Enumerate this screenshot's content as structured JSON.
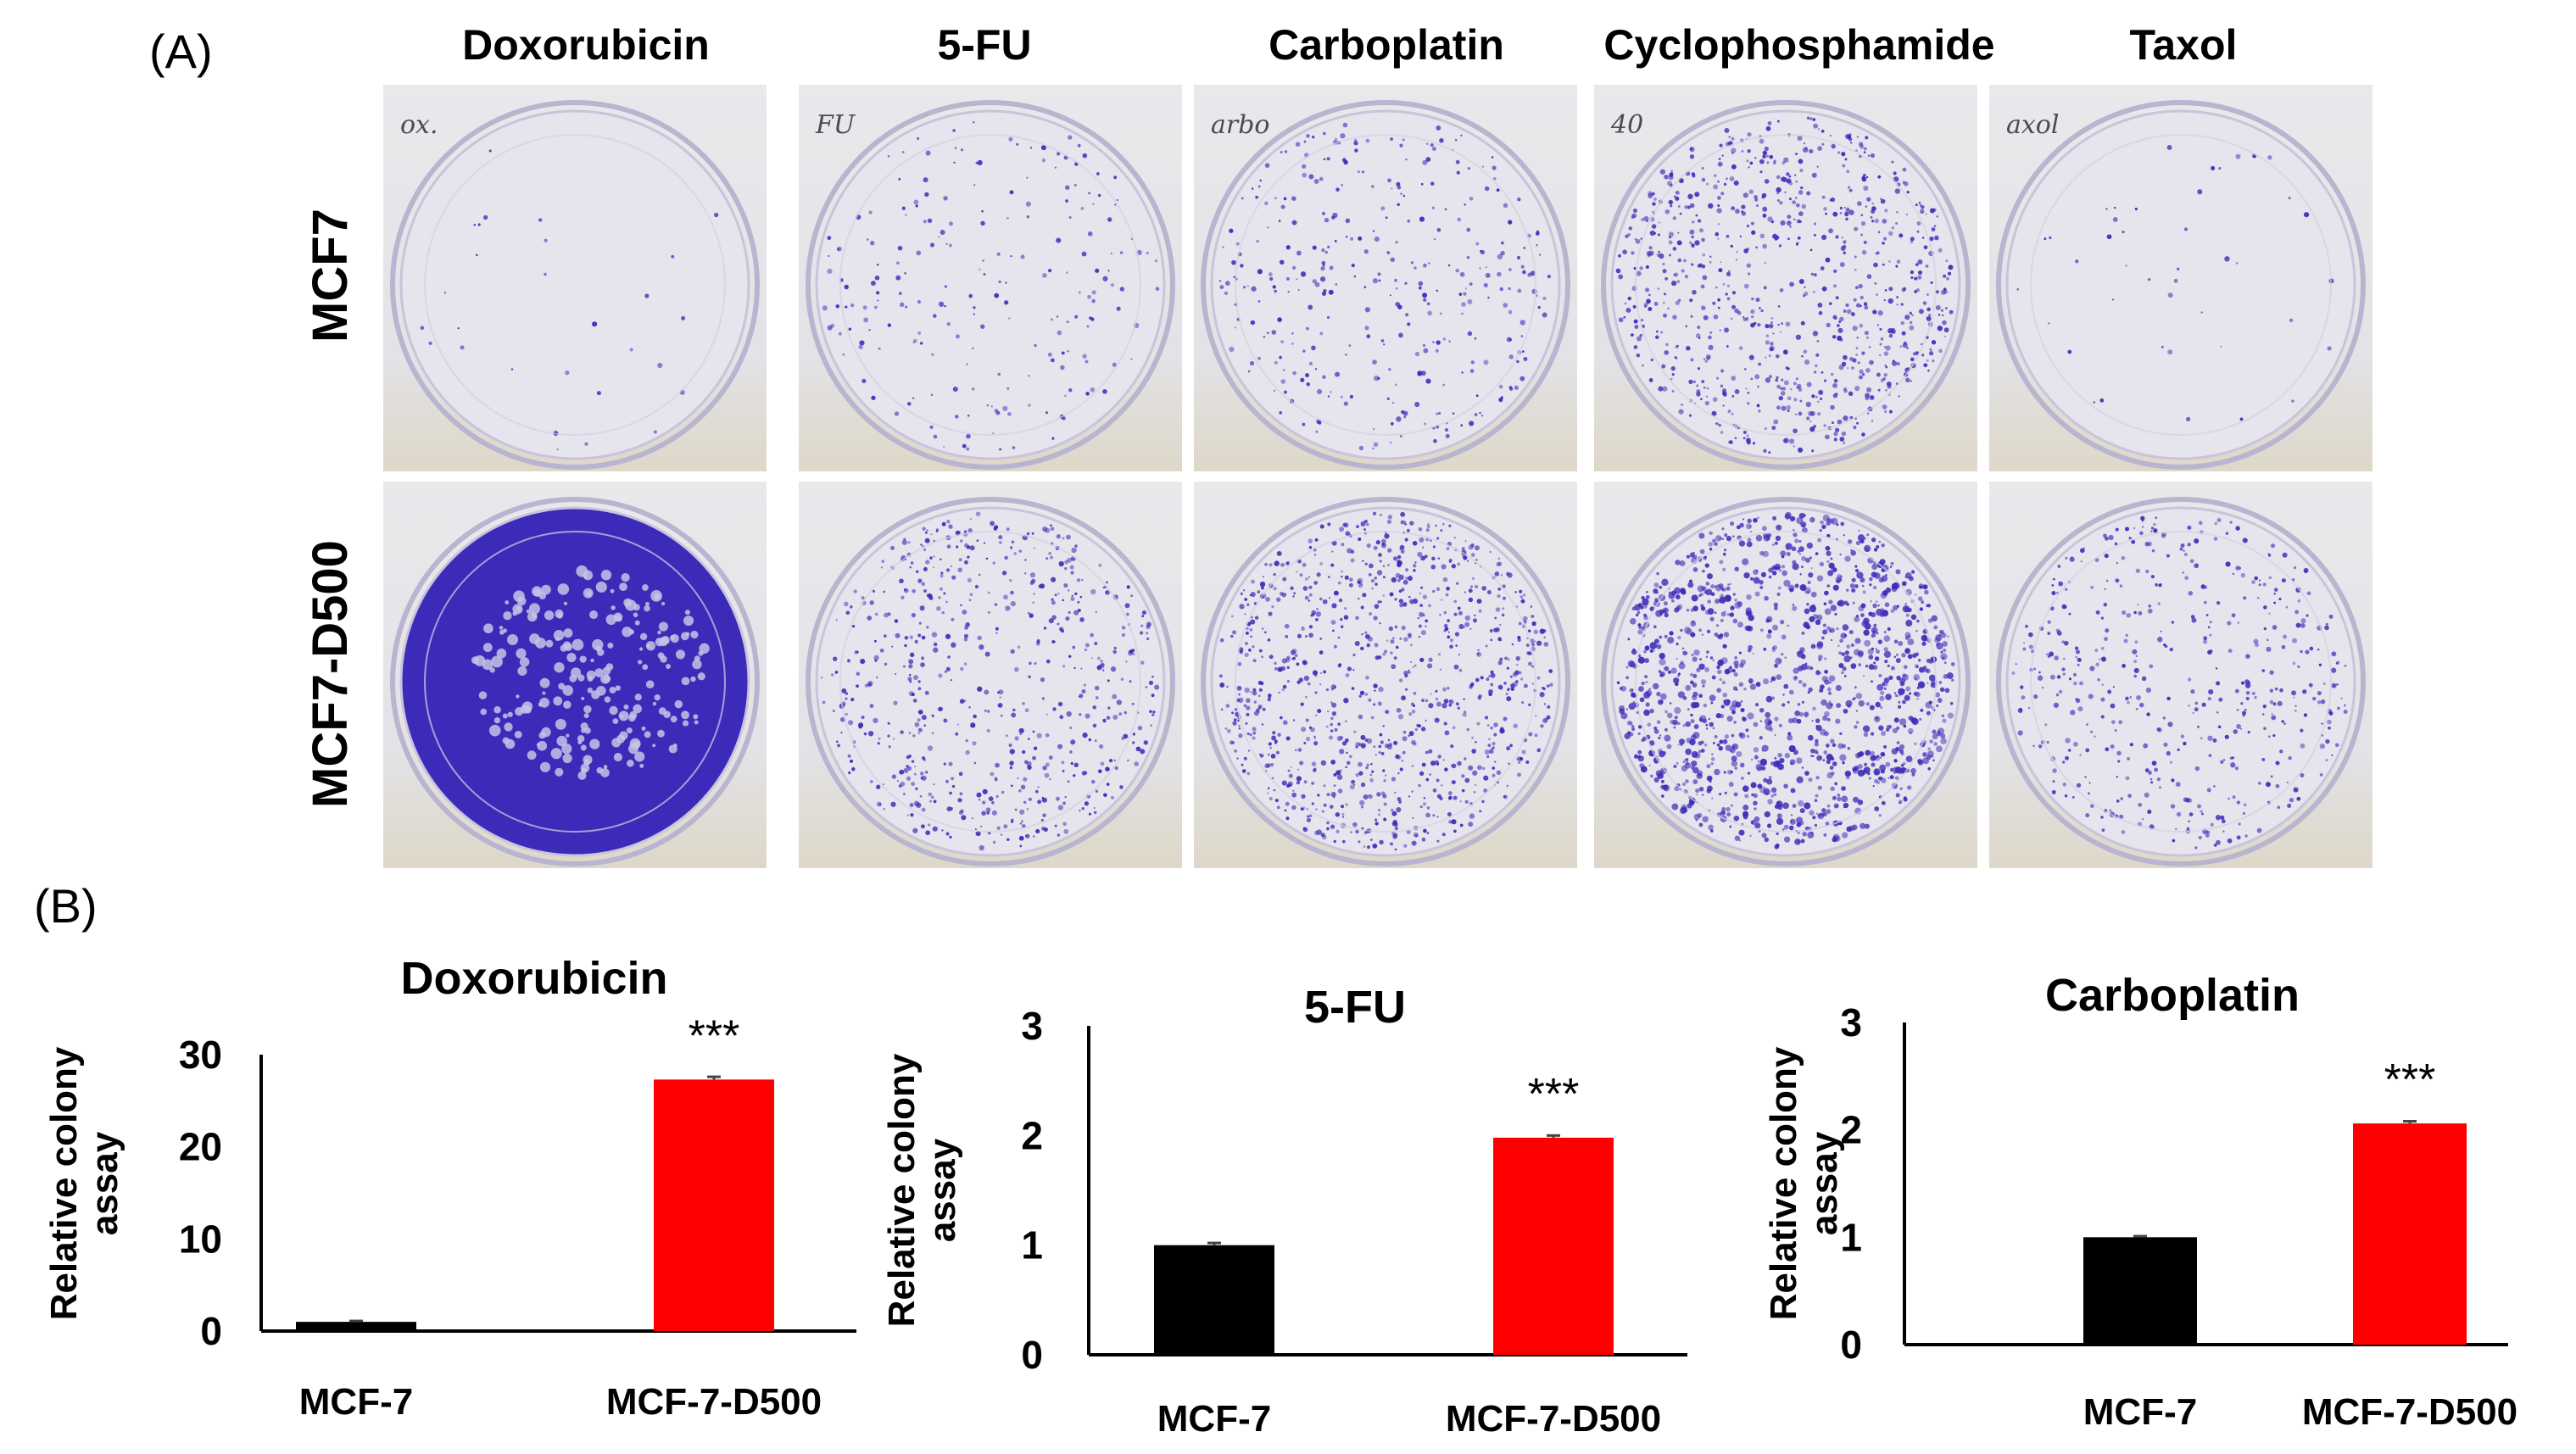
{
  "panel_a": {
    "letter": "(A)",
    "columns": [
      "Doxorubicin",
      "5-FU",
      "Carboplatin",
      "Cyclophosphamide",
      "Taxol"
    ],
    "rows": [
      "MCF7",
      "MCF7-D500"
    ],
    "dish_annotations": [
      "ox.",
      "FU",
      "arbo",
      "40",
      "axol"
    ],
    "stain_color": "#3b2bb8",
    "colony_density": [
      [
        0.02,
        0.15,
        0.25,
        0.6,
        0.03
      ],
      [
        1.0,
        0.45,
        0.7,
        0.95,
        0.35
      ]
    ]
  },
  "panel_b": {
    "letter": "(B)"
  },
  "chart_data": [
    {
      "type": "bar",
      "title": "Doxorubicin",
      "ylabel": "Relative colony assay",
      "categories": [
        "MCF-7",
        "MCF-7-D500"
      ],
      "values": [
        1,
        27.3
      ],
      "errors": [
        0.1,
        0.3
      ],
      "colors": [
        "#000000",
        "#ff0000"
      ],
      "ylim": [
        0,
        30
      ],
      "yticks": [
        0,
        10,
        20,
        30
      ],
      "annotations": [
        {
          "category": "MCF-7-D500",
          "text": "***"
        }
      ],
      "grid": false
    },
    {
      "type": "bar",
      "title": "5-FU",
      "ylabel": "Relative colony assay",
      "categories": [
        "MCF-7",
        "MCF-7-D500"
      ],
      "values": [
        1,
        1.98
      ],
      "errors": [
        0.02,
        0.02
      ],
      "colors": [
        "#000000",
        "#ff0000"
      ],
      "ylim": [
        0,
        3
      ],
      "yticks": [
        0,
        1,
        2,
        3
      ],
      "annotations": [
        {
          "category": "MCF-7-D500",
          "text": "***"
        }
      ],
      "grid": false
    },
    {
      "type": "bar",
      "title": "Carboplatin",
      "ylabel": "Relative colony assay",
      "categories": [
        "MCF-7",
        "MCF-7-D500"
      ],
      "values": [
        1,
        2.06
      ],
      "errors": [
        0.01,
        0.02
      ],
      "colors": [
        "#000000",
        "#ff0000"
      ],
      "ylim": [
        0,
        3
      ],
      "yticks": [
        0,
        1,
        2,
        3
      ],
      "annotations": [
        {
          "category": "MCF-7-D500",
          "text": "***"
        }
      ],
      "grid": false
    }
  ]
}
